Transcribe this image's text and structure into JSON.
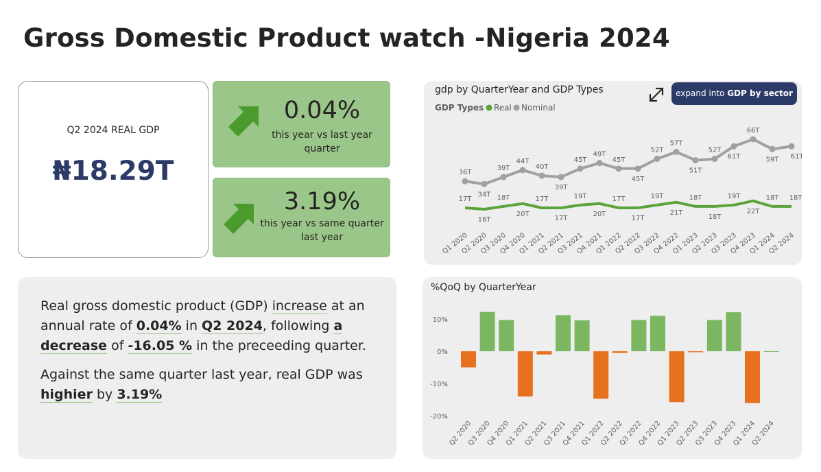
{
  "page_title": "Gross Domestic Product watch -Nigeria 2024",
  "main_card": {
    "label": "Q2 2024 REAL GDP",
    "value": "₦18.29T"
  },
  "kpi_qoq": {
    "value": "0.04%",
    "sub_line1": "this year vs last year",
    "sub_line2": "quarter"
  },
  "kpi_yoy": {
    "value": "3.19%",
    "sub_line1": "this year vs same quarter",
    "sub_line2": "last year"
  },
  "summary": {
    "p1_a": "Real gross domestic product (GDP) ",
    "p1_b": "increase",
    "p1_c": " at an annual rate of ",
    "p1_d": "0.04%",
    "p1_e": " in ",
    "p1_f": "Q2 2024",
    "p1_g": ", following ",
    "p1_h": "a decrease",
    "p1_i": " of ",
    "p1_j": "-16.05 %",
    "p1_k": " in the preceeding quarter.",
    "p2_a": "Against the same quarter last year, real GDP was ",
    "p2_b": "highier",
    "p2_c": " by ",
    "p2_d": "3.19%"
  },
  "expand_button": {
    "prefix": "expand into ",
    "bold": "GDP by sector"
  },
  "icons": {
    "arrow": "arrow-up-right-icon",
    "expand": "expand-arrows-icon"
  },
  "colors": {
    "real": "#5ba33a",
    "nominal": "#a0a0a0",
    "positive": "#7bb661",
    "negative": "#e8711f",
    "accent": "#2b3a67",
    "kpi_bg": "#9bc689"
  },
  "chart_data": [
    {
      "type": "line",
      "title": "gdp by QuarterYear and GDP Types",
      "legend_title": "GDP Types",
      "legend_position": "top-left",
      "categories": [
        "Q1 2020",
        "Q2 2020",
        "Q3 2020",
        "Q4 2020",
        "Q1 2021",
        "Q2 2021",
        "Q3 2021",
        "Q4 2021",
        "Q1 2022",
        "Q2 2022",
        "Q3 2022",
        "Q4 2022",
        "Q1 2023",
        "Q2 2023",
        "Q3 2023",
        "Q4 2023",
        "Q1 2024",
        "Q2 2024"
      ],
      "series": [
        {
          "name": "Real",
          "values": [
            17,
            16,
            18,
            20,
            17,
            17,
            19,
            20,
            17,
            17,
            19,
            21,
            18,
            18,
            19,
            22,
            18,
            18
          ],
          "labels": [
            "17T",
            "16T",
            "18T",
            "20T",
            "17T",
            "17T",
            "19T",
            "20T",
            "17T",
            "17T",
            "19T",
            "21T",
            "18T",
            "18T",
            "19T",
            "22T",
            "18T",
            "18T"
          ]
        },
        {
          "name": "Nominal",
          "values": [
            36,
            34,
            39,
            44,
            40,
            39,
            45,
            49,
            45,
            45,
            52,
            57,
            51,
            52,
            61,
            66,
            59,
            61
          ],
          "labels": [
            "36T",
            "34T",
            "39T",
            "44T",
            "40T",
            "39T",
            "45T",
            "49T",
            "45T",
            "45T",
            "52T",
            "57T",
            "51T",
            "52T",
            "61T",
            "66T",
            "59T",
            "61T"
          ]
        }
      ]
    },
    {
      "type": "bar",
      "title": "%QoQ by QuarterYear",
      "categories": [
        "Q2 2020",
        "Q3 2020",
        "Q4 2020",
        "Q1 2021",
        "Q2 2021",
        "Q3 2021",
        "Q4 2021",
        "Q1 2022",
        "Q2 2022",
        "Q3 2022",
        "Q4 2022",
        "Q1 2023",
        "Q2 2023",
        "Q3 2023",
        "Q4 2023",
        "Q1 2024",
        "Q2 2024"
      ],
      "values": [
        -5,
        12.2,
        9.7,
        -14,
        -1,
        11.2,
        9.6,
        -14.7,
        -0.5,
        9.7,
        11,
        -15.8,
        -0.3,
        9.7,
        12.1,
        -16.05,
        0.04
      ],
      "yticks": [
        "10%",
        "0%",
        "-10%",
        "-20%"
      ],
      "ylim": [
        -20,
        13
      ]
    }
  ]
}
